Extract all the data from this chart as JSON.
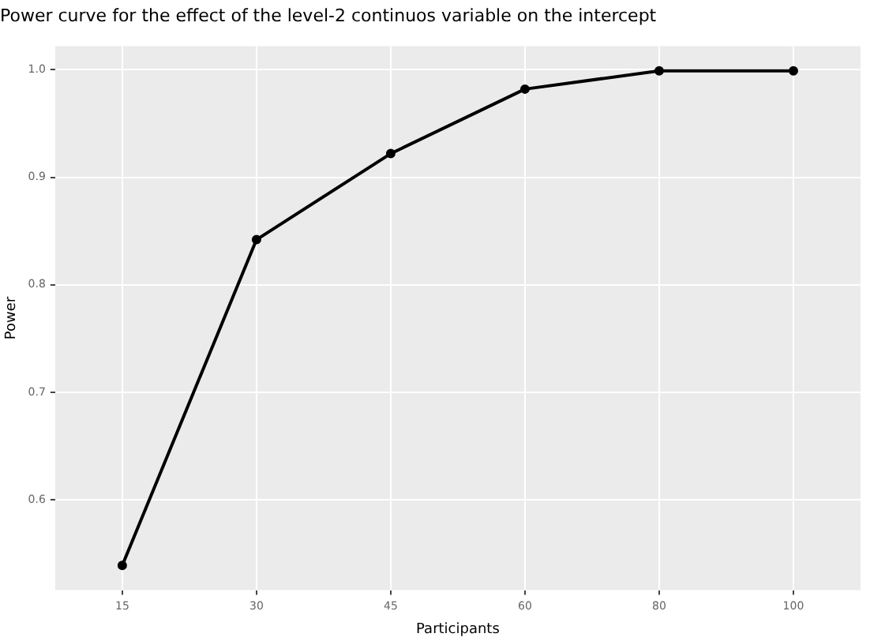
{
  "chart_data": {
    "type": "line",
    "title": "Power curve for the effect of the level-2 continuos variable on the intercept",
    "xlabel": "Participants",
    "ylabel": "Power",
    "categories": [
      "15",
      "30",
      "45",
      "60",
      "80",
      "100"
    ],
    "series": [
      {
        "color": "#000000",
        "values": [
          0.539,
          0.842,
          0.922,
          0.982,
          0.999,
          0.999
        ]
      }
    ],
    "ylim": [
      0.516,
      1.022
    ],
    "yticks": [
      {
        "value": 0.6,
        "label": "0.6"
      },
      {
        "value": 0.7,
        "label": "0.7"
      },
      {
        "value": 0.8,
        "label": "0.8"
      },
      {
        "value": 0.9,
        "label": "0.9"
      },
      {
        "value": 1.0,
        "label": "1.0"
      }
    ],
    "grid": true,
    "legend": false,
    "marker": "circle",
    "line_style": "solid"
  }
}
